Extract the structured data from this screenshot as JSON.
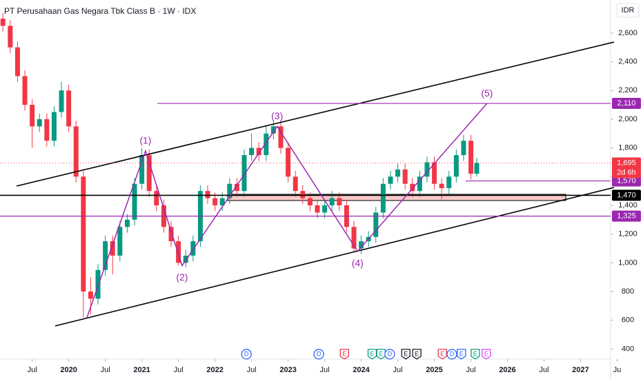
{
  "chart_data": {
    "type": "candlestick",
    "title": "PT Perusahaan Gas Negara Tbk Class B · 1W · IDX",
    "currency": "IDR",
    "up_color": "#089981",
    "down_color": "#f23645",
    "xlim": [
      2019.06,
      2027.41
    ],
    "xticks": [
      {
        "value": 2019.5,
        "label": "Jul"
      },
      {
        "value": 2020,
        "label": "2020"
      },
      {
        "value": 2020.5,
        "label": "Jul"
      },
      {
        "value": 2021,
        "label": "2021"
      },
      {
        "value": 2021.5,
        "label": "Jul"
      },
      {
        "value": 2022,
        "label": "2022"
      },
      {
        "value": 2022.5,
        "label": "Jul"
      },
      {
        "value": 2023,
        "label": "2023"
      },
      {
        "value": 2023.5,
        "label": "Jul"
      },
      {
        "value": 2024,
        "label": "2024"
      },
      {
        "value": 2024.5,
        "label": "Jul"
      },
      {
        "value": 2025,
        "label": "2025"
      },
      {
        "value": 2025.5,
        "label": "Jul"
      },
      {
        "value": 2026,
        "label": "2026"
      },
      {
        "value": 2026.5,
        "label": "Jul"
      },
      {
        "value": 2027,
        "label": "2027"
      },
      {
        "value": 2027.5,
        "label": "Ju"
      }
    ],
    "ylim": [
      330,
      2830
    ],
    "yticks": [
      400,
      600,
      800,
      {
        "value": 1000,
        "label": "1,000"
      },
      {
        "value": 1200,
        "label": "1,200"
      },
      {
        "value": 1400,
        "label": "1,400"
      },
      {
        "value": 1600,
        "label": "1,600"
      },
      {
        "value": 1800,
        "label": "1,800"
      },
      {
        "value": 2000,
        "label": "2,000"
      },
      {
        "value": 2200,
        "label": "2,200"
      },
      {
        "value": 2400,
        "label": "2,400"
      },
      {
        "value": 2600,
        "label": "2,600"
      }
    ],
    "x": [
      2019.1,
      2019.2,
      2019.3,
      2019.4,
      2019.5,
      2019.6,
      2019.7,
      2019.8,
      2019.9,
      2020.0,
      2020.1,
      2020.2,
      2020.3,
      2020.4,
      2020.5,
      2020.6,
      2020.7,
      2020.8,
      2020.9,
      2021.0,
      2021.1,
      2021.2,
      2021.3,
      2021.4,
      2021.5,
      2021.6,
      2021.7,
      2021.8,
      2021.9,
      2022.0,
      2022.1,
      2022.2,
      2022.3,
      2022.4,
      2022.5,
      2022.6,
      2022.7,
      2022.8,
      2022.9,
      2023.0,
      2023.1,
      2023.2,
      2023.3,
      2023.4,
      2023.5,
      2023.6,
      2023.7,
      2023.8,
      2023.9,
      2024.0,
      2024.1,
      2024.2,
      2024.3,
      2024.4,
      2024.5,
      2024.6,
      2024.7,
      2024.8,
      2024.9,
      2025.0,
      2025.1,
      2025.2,
      2025.3,
      2025.4,
      2025.5,
      2025.58
    ],
    "open": [
      2700,
      2650,
      2500,
      2300,
      2100,
      1950,
      2000,
      1850,
      2050,
      2200,
      1950,
      1600,
      800,
      750,
      950,
      1150,
      1050,
      1250,
      1300,
      1550,
      1750,
      1500,
      1400,
      1250,
      1150,
      1000,
      1050,
      1150,
      1500,
      1450,
      1400,
      1450,
      1550,
      1500,
      1750,
      1800,
      1750,
      1900,
      1950,
      1800,
      1600,
      1500,
      1450,
      1400,
      1350,
      1400,
      1450,
      1400,
      1250,
      1100,
      1150,
      1180,
      1350,
      1550,
      1600,
      1650,
      1550,
      1500,
      1600,
      1700,
      1550,
      1520,
      1600,
      1750,
      1850,
      1620
    ],
    "high": [
      2740,
      2690,
      2540,
      2340,
      2140,
      2040,
      2040,
      2090,
      2260,
      2240,
      1990,
      1640,
      900,
      990,
      1190,
      1190,
      1290,
      1340,
      1590,
      1800,
      1790,
      1540,
      1440,
      1290,
      1190,
      1090,
      1190,
      1540,
      1540,
      1490,
      1490,
      1590,
      1590,
      1790,
      1900,
      1840,
      1960,
      1990,
      1990,
      1840,
      1640,
      1540,
      1490,
      1440,
      1440,
      1500,
      1490,
      1440,
      1290,
      1190,
      1220,
      1390,
      1590,
      1640,
      1690,
      1690,
      1590,
      1640,
      1740,
      1740,
      1590,
      1640,
      1790,
      1890,
      1890,
      1730
    ],
    "low": [
      2610,
      2460,
      2260,
      2060,
      1800,
      1910,
      1810,
      1810,
      2010,
      1910,
      1560,
      620,
      640,
      710,
      910,
      920,
      1010,
      1210,
      1260,
      1510,
      1460,
      1360,
      1210,
      1110,
      980,
      970,
      1010,
      1110,
      1410,
      1360,
      1360,
      1410,
      1460,
      1460,
      1710,
      1710,
      1710,
      1860,
      1760,
      1560,
      1460,
      1410,
      1360,
      1310,
      1310,
      1360,
      1360,
      1210,
      1080,
      1060,
      1110,
      1140,
      1310,
      1510,
      1560,
      1510,
      1460,
      1460,
      1560,
      1510,
      1440,
      1480,
      1560,
      1710,
      1580,
      1600
    ],
    "close": [
      2650,
      2500,
      2300,
      2100,
      1950,
      2000,
      1850,
      2050,
      2200,
      1950,
      1600,
      800,
      750,
      950,
      1150,
      1050,
      1250,
      1300,
      1550,
      1750,
      1500,
      1400,
      1250,
      1150,
      1000,
      1050,
      1150,
      1500,
      1450,
      1400,
      1450,
      1550,
      1500,
      1750,
      1800,
      1750,
      1900,
      1950,
      1800,
      1600,
      1500,
      1450,
      1400,
      1350,
      1400,
      1450,
      1400,
      1250,
      1100,
      1150,
      1180,
      1350,
      1550,
      1600,
      1650,
      1550,
      1500,
      1600,
      1700,
      1550,
      1520,
      1600,
      1750,
      1850,
      1620,
      1695
    ],
    "waves": [
      {
        "label": "(1)",
        "x": 2021.05,
        "value": 1780
      },
      {
        "label": "(2)",
        "x": 2021.55,
        "value": 980
      },
      {
        "label": "(3)",
        "x": 2022.85,
        "value": 1950
      },
      {
        "label": "(4)",
        "x": 2023.95,
        "value": 1080
      },
      {
        "label": "(5)",
        "x": 2025.72,
        "value": 2110
      }
    ],
    "wave_start": {
      "x": 2020.25,
      "value": 620
    },
    "levels": [
      {
        "value": 2110,
        "label": "2,110",
        "color": "#9c27b0"
      },
      {
        "value": 1570,
        "label": "1,570",
        "color": "#9c27b0"
      },
      {
        "value": 1470,
        "label": "1,470",
        "color": "#000000"
      },
      {
        "value": 1325,
        "label": "1,325",
        "color": "#9c27b0"
      }
    ],
    "last_price": {
      "value": 1695,
      "label": "1,695",
      "countdown": "2d 6h"
    },
    "events": [
      {
        "x": 2022.43,
        "label": "D",
        "color": "#2962ff"
      },
      {
        "x": 2023.42,
        "label": "D",
        "color": "#2962ff"
      },
      {
        "x": 2023.77,
        "label": "E",
        "color": "#f23645"
      },
      {
        "x": 2024.15,
        "label": "E",
        "color": "#089981"
      },
      {
        "x": 2024.27,
        "label": "E",
        "color": "#089981"
      },
      {
        "x": 2024.39,
        "label": "D",
        "color": "#2962ff"
      },
      {
        "x": 2024.61,
        "label": "E",
        "color": "#131722"
      },
      {
        "x": 2024.76,
        "label": "E",
        "color": "#131722"
      },
      {
        "x": 2025.11,
        "label": "E",
        "color": "#f23645"
      },
      {
        "x": 2025.24,
        "label": "D",
        "color": "#2962ff"
      },
      {
        "x": 2025.37,
        "label": "E",
        "color": "#2962ff"
      },
      {
        "x": 2025.56,
        "label": "E",
        "color": "#089981"
      },
      {
        "x": 2025.71,
        "label": "E",
        "color": "#e040fb"
      }
    ]
  }
}
